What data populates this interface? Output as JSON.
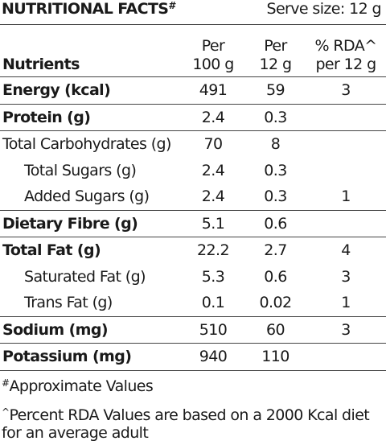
{
  "header": {
    "title": "NUTRITIONAL FACTS",
    "title_mark": "#",
    "serve_size": "Serve size: 12 g"
  },
  "table": {
    "columns": [
      [
        "Nutrients"
      ],
      [
        "Per",
        "100 g"
      ],
      [
        "Per",
        "12 g"
      ],
      [
        "% RDA^",
        "per 12 g"
      ]
    ],
    "groups": [
      [
        {
          "name": "Energy (kcal)",
          "bold": true,
          "per100": "491",
          "per12": "59",
          "rda": "3"
        }
      ],
      [
        {
          "name": "Protein (g)",
          "bold": true,
          "per100": "2.4",
          "per12": "0.3"
        }
      ],
      [
        {
          "name": "Total Carbohydrates (g)",
          "per100": "70",
          "per12": "8"
        },
        {
          "name": "Total Sugars (g)",
          "indent": true,
          "per100": "2.4",
          "per12": "0.3"
        },
        {
          "name": "Added Sugars (g)",
          "indent": true,
          "per100": "2.4",
          "per12": "0.3",
          "rda": "1"
        }
      ],
      [
        {
          "name": "Dietary Fibre (g)",
          "bold": true,
          "per100": "5.1",
          "per12": "0.6"
        }
      ],
      [
        {
          "name": "Total Fat (g)",
          "bold": true,
          "per100": "22.2",
          "per12": "2.7",
          "rda": "4"
        },
        {
          "name": "Saturated Fat (g)",
          "indent": true,
          "per100": "5.3",
          "per12": "0.6",
          "rda": "3"
        },
        {
          "name": "Trans Fat (g)",
          "indent": true,
          "per100": "0.1",
          "per12": "0.02",
          "rda": "1"
        }
      ],
      [
        {
          "name": "Sodium (mg)",
          "bold": true,
          "per100": "510",
          "per12": "60",
          "rda": "3"
        }
      ],
      [
        {
          "name": "Potassium (mg)",
          "bold": true,
          "per100": "940",
          "per12": "110"
        }
      ]
    ]
  },
  "footnotes": [
    {
      "mark": "#",
      "text": "Approximate Values"
    },
    {
      "mark": "^",
      "text": "Percent RDA Values are based on a 2000 Kcal diet for an average adult"
    }
  ]
}
